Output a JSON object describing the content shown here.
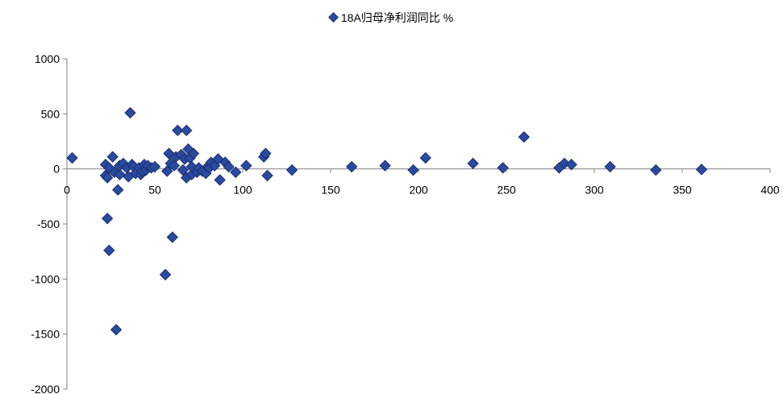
{
  "chart_data": {
    "type": "scatter",
    "title": "",
    "xlabel": "",
    "ylabel": "",
    "xlim": [
      0,
      400
    ],
    "ylim": [
      -2000,
      1000
    ],
    "x_ticks": [
      0,
      50,
      100,
      150,
      200,
      250,
      300,
      350,
      400
    ],
    "y_ticks": [
      1000,
      500,
      0,
      -500,
      -1000,
      -1500,
      -2000
    ],
    "grid": false,
    "legend_position": "top-center",
    "marker_color": "#2a4aa0",
    "marker_edge_color": "#1b2f6e",
    "series": [
      {
        "name": "18A归母净利润同比 %",
        "points": [
          [
            3,
            100
          ],
          [
            22,
            -60
          ],
          [
            22,
            40
          ],
          [
            23,
            -80
          ],
          [
            23,
            -450
          ],
          [
            24,
            -740
          ],
          [
            24,
            10
          ],
          [
            26,
            110
          ],
          [
            27,
            -30
          ],
          [
            28,
            -1460
          ],
          [
            29,
            -190
          ],
          [
            30,
            -50
          ],
          [
            30,
            30
          ],
          [
            32,
            50
          ],
          [
            34,
            10
          ],
          [
            35,
            -70
          ],
          [
            36,
            510
          ],
          [
            37,
            40
          ],
          [
            38,
            20
          ],
          [
            39,
            -40
          ],
          [
            41,
            10
          ],
          [
            42,
            -50
          ],
          [
            43,
            -20
          ],
          [
            44,
            40
          ],
          [
            45,
            -10
          ],
          [
            46,
            30
          ],
          [
            48,
            10
          ],
          [
            50,
            20
          ],
          [
            56,
            -960
          ],
          [
            57,
            -20
          ],
          [
            58,
            140
          ],
          [
            59,
            50
          ],
          [
            60,
            -620
          ],
          [
            61,
            30
          ],
          [
            62,
            110
          ],
          [
            63,
            350
          ],
          [
            65,
            130
          ],
          [
            66,
            -10
          ],
          [
            67,
            90
          ],
          [
            68,
            350
          ],
          [
            68,
            -80
          ],
          [
            69,
            180
          ],
          [
            70,
            100
          ],
          [
            71,
            -50
          ],
          [
            71,
            20
          ],
          [
            72,
            140
          ],
          [
            74,
            -30
          ],
          [
            75,
            10
          ],
          [
            77,
            -20
          ],
          [
            79,
            -40
          ],
          [
            80,
            20
          ],
          [
            81,
            10
          ],
          [
            82,
            60
          ],
          [
            84,
            30
          ],
          [
            86,
            90
          ],
          [
            87,
            -100
          ],
          [
            90,
            60
          ],
          [
            92,
            20
          ],
          [
            96,
            -30
          ],
          [
            102,
            30
          ],
          [
            112,
            110
          ],
          [
            113,
            140
          ],
          [
            114,
            -60
          ],
          [
            128,
            -10
          ],
          [
            162,
            20
          ],
          [
            181,
            30
          ],
          [
            197,
            -10
          ],
          [
            204,
            100
          ],
          [
            231,
            50
          ],
          [
            248,
            10
          ],
          [
            260,
            290
          ],
          [
            280,
            10
          ],
          [
            283,
            50
          ],
          [
            287,
            40
          ],
          [
            309,
            20
          ],
          [
            335,
            -10
          ],
          [
            361,
            -5
          ]
        ]
      }
    ]
  }
}
